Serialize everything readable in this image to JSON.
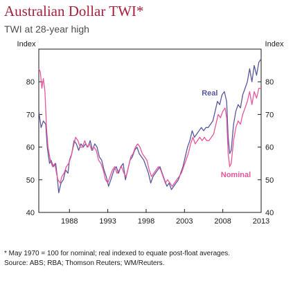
{
  "title": "Australian Dollar TWI*",
  "subtitle": "TWI at 28-year high",
  "footnote": "* May 1970 = 100 for nominal; real indexed to equate post-float averages.",
  "source": "Source: ABS; RBA; Thomson Reuters; WM/Reuters.",
  "colors": {
    "title": "#a8203a",
    "real": "#56579e",
    "nominal": "#e8559a"
  },
  "chart_data": {
    "type": "line",
    "ylabel_left": "Index",
    "ylabel_right": "Index",
    "xlim": [
      1984.0,
      2013.0
    ],
    "ylim": [
      40,
      90
    ],
    "x_ticks": [
      1988,
      1993,
      1998,
      2003,
      2008,
      2013
    ],
    "x_tick_labels": [
      "1988",
      "1993",
      "1998",
      "2003",
      "2008",
      "2013"
    ],
    "y_ticks": [
      40,
      50,
      60,
      70,
      80
    ],
    "y_tick_labels": [
      "40",
      "50",
      "60",
      "70",
      "80"
    ],
    "grid": false,
    "series": [
      {
        "name": "Real",
        "color": "#56579e",
        "points": [
          [
            1984.0,
            71
          ],
          [
            1984.3,
            66
          ],
          [
            1984.6,
            68
          ],
          [
            1984.9,
            67
          ],
          [
            1985.1,
            60
          ],
          [
            1985.4,
            55
          ],
          [
            1985.6,
            56
          ],
          [
            1985.9,
            54
          ],
          [
            1986.2,
            55
          ],
          [
            1986.4,
            51
          ],
          [
            1986.6,
            46
          ],
          [
            1986.9,
            49
          ],
          [
            1987.2,
            50
          ],
          [
            1987.5,
            53
          ],
          [
            1987.8,
            52
          ],
          [
            1988.0,
            56
          ],
          [
            1988.3,
            58
          ],
          [
            1988.6,
            62
          ],
          [
            1988.9,
            61
          ],
          [
            1989.2,
            59
          ],
          [
            1989.5,
            61
          ],
          [
            1989.8,
            60
          ],
          [
            1990.1,
            61
          ],
          [
            1990.4,
            60
          ],
          [
            1990.7,
            62
          ],
          [
            1991.0,
            59
          ],
          [
            1991.3,
            61
          ],
          [
            1991.6,
            60
          ],
          [
            1991.9,
            57
          ],
          [
            1992.2,
            56
          ],
          [
            1992.5,
            53
          ],
          [
            1992.8,
            51
          ],
          [
            1993.1,
            48
          ],
          [
            1993.4,
            50
          ],
          [
            1993.8,
            53
          ],
          [
            1994.1,
            54
          ],
          [
            1994.4,
            52
          ],
          [
            1994.7,
            54
          ],
          [
            1995.0,
            55
          ],
          [
            1995.3,
            50
          ],
          [
            1995.6,
            53
          ],
          [
            1995.9,
            56
          ],
          [
            1996.2,
            57
          ],
          [
            1996.5,
            59
          ],
          [
            1996.8,
            60
          ],
          [
            1997.1,
            58
          ],
          [
            1997.4,
            57
          ],
          [
            1997.7,
            56
          ],
          [
            1998.0,
            54
          ],
          [
            1998.3,
            52
          ],
          [
            1998.6,
            49
          ],
          [
            1998.9,
            51
          ],
          [
            1999.2,
            52
          ],
          [
            1999.5,
            53
          ],
          [
            1999.8,
            54
          ],
          [
            2000.1,
            52
          ],
          [
            2000.4,
            50
          ],
          [
            2000.7,
            48
          ],
          [
            2001.0,
            49
          ],
          [
            2001.3,
            47
          ],
          [
            2001.6,
            48
          ],
          [
            2001.9,
            49
          ],
          [
            2002.2,
            50
          ],
          [
            2002.5,
            52
          ],
          [
            2002.8,
            54
          ],
          [
            2003.1,
            57
          ],
          [
            2003.4,
            60
          ],
          [
            2003.7,
            62
          ],
          [
            2004.0,
            65
          ],
          [
            2004.3,
            63
          ],
          [
            2004.6,
            64
          ],
          [
            2004.9,
            65
          ],
          [
            2005.2,
            66
          ],
          [
            2005.5,
            65
          ],
          [
            2005.8,
            66
          ],
          [
            2006.1,
            66
          ],
          [
            2006.4,
            67
          ],
          [
            2006.7,
            68
          ],
          [
            2007.0,
            71
          ],
          [
            2007.3,
            74
          ],
          [
            2007.6,
            73
          ],
          [
            2007.9,
            76
          ],
          [
            2008.2,
            77
          ],
          [
            2008.5,
            74
          ],
          [
            2008.7,
            63
          ],
          [
            2008.9,
            58
          ],
          [
            2009.1,
            59
          ],
          [
            2009.4,
            67
          ],
          [
            2009.7,
            71
          ],
          [
            2010.0,
            73
          ],
          [
            2010.3,
            72
          ],
          [
            2010.6,
            76
          ],
          [
            2010.9,
            78
          ],
          [
            2011.2,
            80
          ],
          [
            2011.5,
            84
          ],
          [
            2011.8,
            80
          ],
          [
            2012.1,
            85
          ],
          [
            2012.4,
            82
          ],
          [
            2012.7,
            86
          ],
          [
            2013.0,
            87
          ]
        ]
      },
      {
        "name": "Nominal",
        "color": "#e8559a",
        "points": [
          [
            1984.0,
            84
          ],
          [
            1984.2,
            83
          ],
          [
            1984.4,
            78
          ],
          [
            1984.6,
            81
          ],
          [
            1984.8,
            77
          ],
          [
            1985.0,
            66
          ],
          [
            1985.2,
            60
          ],
          [
            1985.5,
            56
          ],
          [
            1985.8,
            54
          ],
          [
            1986.1,
            55
          ],
          [
            1986.3,
            52
          ],
          [
            1986.5,
            50
          ],
          [
            1986.8,
            49
          ],
          [
            1987.0,
            51
          ],
          [
            1987.3,
            52
          ],
          [
            1987.6,
            54
          ],
          [
            1987.9,
            55
          ],
          [
            1988.2,
            57
          ],
          [
            1988.5,
            60
          ],
          [
            1988.8,
            63
          ],
          [
            1989.1,
            62
          ],
          [
            1989.4,
            60
          ],
          [
            1989.7,
            60
          ],
          [
            1990.0,
            62
          ],
          [
            1990.3,
            60
          ],
          [
            1990.6,
            61
          ],
          [
            1990.9,
            59
          ],
          [
            1991.2,
            60
          ],
          [
            1991.5,
            59
          ],
          [
            1991.8,
            56
          ],
          [
            1992.1,
            55
          ],
          [
            1992.4,
            53
          ],
          [
            1992.7,
            50
          ],
          [
            1993.0,
            49
          ],
          [
            1993.3,
            51
          ],
          [
            1993.6,
            53
          ],
          [
            1993.9,
            54
          ],
          [
            1994.2,
            52
          ],
          [
            1994.5,
            53
          ],
          [
            1994.8,
            54
          ],
          [
            1995.1,
            52
          ],
          [
            1995.4,
            51
          ],
          [
            1995.7,
            54
          ],
          [
            1996.0,
            57
          ],
          [
            1996.3,
            58
          ],
          [
            1996.6,
            60
          ],
          [
            1996.9,
            61
          ],
          [
            1997.2,
            60
          ],
          [
            1997.5,
            58
          ],
          [
            1997.8,
            57
          ],
          [
            1998.1,
            56
          ],
          [
            1998.4,
            53
          ],
          [
            1998.7,
            51
          ],
          [
            1999.0,
            52
          ],
          [
            1999.3,
            53
          ],
          [
            1999.6,
            54
          ],
          [
            1999.9,
            53
          ],
          [
            2000.2,
            51
          ],
          [
            2000.5,
            49
          ],
          [
            2000.8,
            50
          ],
          [
            2001.1,
            49
          ],
          [
            2001.4,
            48
          ],
          [
            2001.7,
            49
          ],
          [
            2002.0,
            50
          ],
          [
            2002.3,
            51
          ],
          [
            2002.6,
            52
          ],
          [
            2002.9,
            54
          ],
          [
            2003.2,
            56
          ],
          [
            2003.5,
            58
          ],
          [
            2003.8,
            61
          ],
          [
            2004.1,
            63
          ],
          [
            2004.4,
            61
          ],
          [
            2004.7,
            62
          ],
          [
            2005.0,
            63
          ],
          [
            2005.3,
            62
          ],
          [
            2005.6,
            63
          ],
          [
            2005.9,
            62
          ],
          [
            2006.2,
            62
          ],
          [
            2006.5,
            63
          ],
          [
            2006.8,
            64
          ],
          [
            2007.1,
            67
          ],
          [
            2007.4,
            70
          ],
          [
            2007.7,
            69
          ],
          [
            2008.0,
            71
          ],
          [
            2008.3,
            72
          ],
          [
            2008.5,
            69
          ],
          [
            2008.7,
            58
          ],
          [
            2008.9,
            54
          ],
          [
            2009.1,
            55
          ],
          [
            2009.4,
            62
          ],
          [
            2009.7,
            66
          ],
          [
            2010.0,
            68
          ],
          [
            2010.3,
            67
          ],
          [
            2010.6,
            70
          ],
          [
            2010.9,
            72
          ],
          [
            2011.2,
            74
          ],
          [
            2011.5,
            77
          ],
          [
            2011.8,
            73
          ],
          [
            2012.1,
            77
          ],
          [
            2012.4,
            75
          ],
          [
            2012.7,
            78
          ],
          [
            2013.0,
            78
          ]
        ]
      }
    ],
    "annotations": [
      {
        "text": "Real",
        "x": 2006.3,
        "y": 75.8,
        "series": 0
      },
      {
        "text": "Nominal",
        "x": 2009.7,
        "y": 50.8,
        "series": 1
      }
    ]
  }
}
